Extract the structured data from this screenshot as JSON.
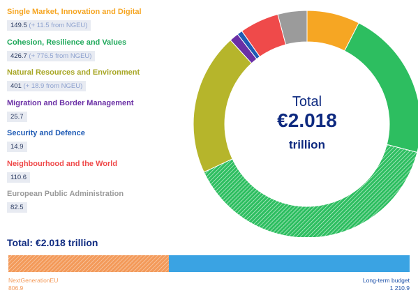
{
  "chart_data": [
    {
      "type": "pie",
      "variant": "donut",
      "center_label": "Total",
      "center_value": "€2.018",
      "center_unit": "trillion",
      "legend_placement": "left",
      "series": [
        {
          "name": "Single Market, Innovation and Digital",
          "value": 149.5,
          "value_label": "149.5",
          "note": "(+ 11.5 from NGEU)",
          "color": "#f6a623"
        },
        {
          "name": "Cohesion, Resilience and Values",
          "value": 426.7,
          "value_label": "426.7",
          "note": "(+ 776.5 from NGEU)",
          "ngeu": 776.5,
          "color": "#2dbe60"
        },
        {
          "name": "Natural Resources and Environment",
          "value": 401,
          "value_label": "401",
          "note": "(+ 18.9 from NGEU)",
          "color": "#b6b52b"
        },
        {
          "name": "Migration and Border Management",
          "value": 25.7,
          "value_label": "25.7",
          "note": "",
          "color": "#6a2fa5"
        },
        {
          "name": "Security and Defence",
          "value": 14.9,
          "value_label": "14.9",
          "note": "",
          "color": "#1f5bb5"
        },
        {
          "name": "Neighbourhood and the World",
          "value": 110.6,
          "value_label": "110.6",
          "note": "",
          "color": "#ef4a4a"
        },
        {
          "name": "European Public Administration",
          "value": 82.5,
          "value_label": "82.5",
          "note": "",
          "color": "#9b9b9b"
        }
      ]
    },
    {
      "type": "bar",
      "variant": "stacked-horizontal",
      "title": "Total: €2.018 trillion",
      "series": [
        {
          "name": "NextGenerationEU",
          "value": 806.9,
          "value_label": "806.9",
          "color": "#f39a5a"
        },
        {
          "name": "Long-term budget",
          "value": 1210.9,
          "value_label": "1 210.9",
          "color": "#3aa3e3"
        }
      ]
    }
  ]
}
